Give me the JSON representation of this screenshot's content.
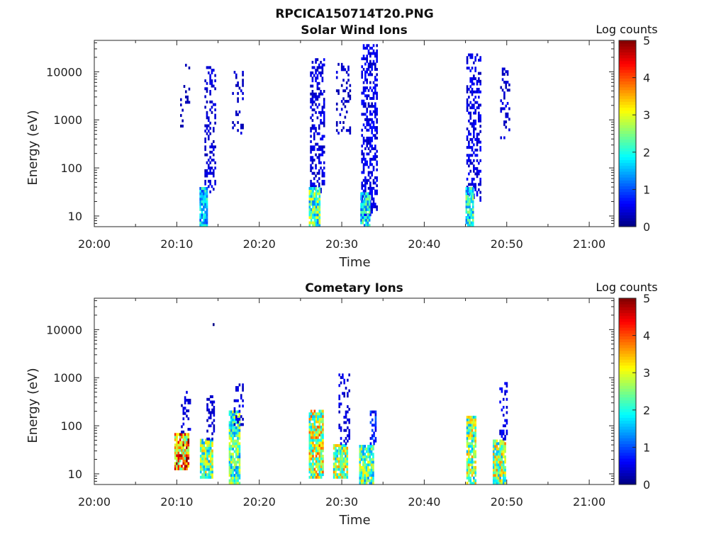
{
  "figure_title": "RPCICA150714T20.PNG",
  "colormap": [
    "#00007f",
    "#0000ff",
    "#007fff",
    "#00ffff",
    "#7fff7f",
    "#ffff00",
    "#ff7f00",
    "#ff0000",
    "#7f0000"
  ],
  "chart_data": [
    {
      "type": "heatmap",
      "title": "Solar Wind Ions",
      "xlabel": "Time",
      "ylabel": "Energy (eV)",
      "x_ticks": [
        "20:00",
        "20:10",
        "20:20",
        "20:30",
        "20:40",
        "20:50",
        "21:00"
      ],
      "xlim_minutes": [
        0,
        63
      ],
      "y_scale": "log",
      "y_ticks": [
        "10",
        "100",
        "1000",
        "10000"
      ],
      "ylim": [
        6,
        45000
      ],
      "colorbar": {
        "title": "Log counts",
        "range": [
          0,
          5
        ],
        "ticks": [
          "0",
          "1",
          "2",
          "3",
          "4",
          "5"
        ]
      },
      "bursts": [
        {
          "t_minutes": 10.9,
          "width_minutes": 1.0,
          "e_min": 700,
          "e_max": 14000,
          "density": 0.14,
          "level": 0.25
        },
        {
          "t_minutes": 14.0,
          "width_minutes": 1.3,
          "e_min": 30,
          "e_max": 12000,
          "density": 0.32,
          "level": 0.4
        },
        {
          "t_minutes": 13.2,
          "width_minutes": 0.9,
          "e_min": 6,
          "e_max": 40,
          "density": 0.9,
          "level": 1.6
        },
        {
          "t_minutes": 17.3,
          "width_minutes": 1.2,
          "e_min": 500,
          "e_max": 10000,
          "density": 0.2,
          "level": 0.35
        },
        {
          "t_minutes": 27.0,
          "width_minutes": 1.7,
          "e_min": 30,
          "e_max": 18000,
          "density": 0.4,
          "level": 0.45
        },
        {
          "t_minutes": 26.6,
          "width_minutes": 1.2,
          "e_min": 6,
          "e_max": 40,
          "density": 0.9,
          "level": 2.2
        },
        {
          "t_minutes": 30.1,
          "width_minutes": 1.6,
          "e_min": 500,
          "e_max": 14000,
          "density": 0.26,
          "level": 0.35
        },
        {
          "t_minutes": 33.3,
          "width_minutes": 1.9,
          "e_min": 10,
          "e_max": 35000,
          "density": 0.45,
          "level": 0.5
        },
        {
          "t_minutes": 32.8,
          "width_minutes": 1.1,
          "e_min": 6,
          "e_max": 30,
          "density": 0.9,
          "level": 1.8
        },
        {
          "t_minutes": 46.0,
          "width_minutes": 1.8,
          "e_min": 20,
          "e_max": 22000,
          "density": 0.42,
          "level": 0.5
        },
        {
          "t_minutes": 45.5,
          "width_minutes": 1.0,
          "e_min": 6,
          "e_max": 40,
          "density": 0.9,
          "level": 1.9
        },
        {
          "t_minutes": 49.8,
          "width_minutes": 1.2,
          "e_min": 400,
          "e_max": 12000,
          "density": 0.26,
          "level": 0.4
        }
      ]
    },
    {
      "type": "heatmap",
      "title": "Cometary Ions",
      "xlabel": "Time",
      "ylabel": "Energy (eV)",
      "x_ticks": [
        "20:00",
        "20:10",
        "20:20",
        "20:30",
        "20:40",
        "20:50",
        "21:00"
      ],
      "xlim_minutes": [
        0,
        63
      ],
      "y_scale": "log",
      "y_ticks": [
        "10",
        "100",
        "1000",
        "10000"
      ],
      "ylim": [
        6,
        45000
      ],
      "colorbar": {
        "title": "Log counts",
        "range": [
          0,
          5
        ],
        "ticks": [
          "0",
          "1",
          "2",
          "3",
          "4",
          "5"
        ]
      },
      "bursts": [
        {
          "t_minutes": 10.5,
          "width_minutes": 1.6,
          "e_min": 12,
          "e_max": 70,
          "density": 0.95,
          "level": 3.6
        },
        {
          "t_minutes": 11.0,
          "width_minutes": 1.0,
          "e_min": 70,
          "e_max": 500,
          "density": 0.3,
          "level": 0.4
        },
        {
          "t_minutes": 13.5,
          "width_minutes": 1.4,
          "e_min": 8,
          "e_max": 50,
          "density": 0.9,
          "level": 2.4
        },
        {
          "t_minutes": 14.0,
          "width_minutes": 0.8,
          "e_min": 50,
          "e_max": 400,
          "density": 0.3,
          "level": 0.4
        },
        {
          "t_minutes": 16.9,
          "width_minutes": 1.2,
          "e_min": 6,
          "e_max": 200,
          "density": 0.85,
          "level": 2.2
        },
        {
          "t_minutes": 17.4,
          "width_minutes": 1.0,
          "e_min": 100,
          "e_max": 700,
          "density": 0.3,
          "level": 0.45
        },
        {
          "t_minutes": 26.8,
          "width_minutes": 1.6,
          "e_min": 8,
          "e_max": 200,
          "density": 0.9,
          "level": 2.8
        },
        {
          "t_minutes": 29.8,
          "width_minutes": 1.7,
          "e_min": 8,
          "e_max": 40,
          "density": 0.9,
          "level": 2.6
        },
        {
          "t_minutes": 30.2,
          "width_minutes": 1.2,
          "e_min": 40,
          "e_max": 1200,
          "density": 0.3,
          "level": 0.45
        },
        {
          "t_minutes": 33.0,
          "width_minutes": 1.8,
          "e_min": 6,
          "e_max": 40,
          "density": 0.9,
          "level": 2.3
        },
        {
          "t_minutes": 33.8,
          "width_minutes": 0.8,
          "e_min": 40,
          "e_max": 200,
          "density": 0.45,
          "level": 0.8
        },
        {
          "t_minutes": 45.7,
          "width_minutes": 1.2,
          "e_min": 6,
          "e_max": 160,
          "density": 0.85,
          "level": 2.5
        },
        {
          "t_minutes": 49.1,
          "width_minutes": 1.6,
          "e_min": 6,
          "e_max": 50,
          "density": 0.9,
          "level": 2.6
        },
        {
          "t_minutes": 49.6,
          "width_minutes": 1.0,
          "e_min": 50,
          "e_max": 900,
          "density": 0.3,
          "level": 0.5
        },
        {
          "t_minutes": 14.4,
          "width_minutes": 0.1,
          "e_min": 12000,
          "e_max": 13500,
          "density": 1.0,
          "level": 0.05
        }
      ]
    }
  ]
}
